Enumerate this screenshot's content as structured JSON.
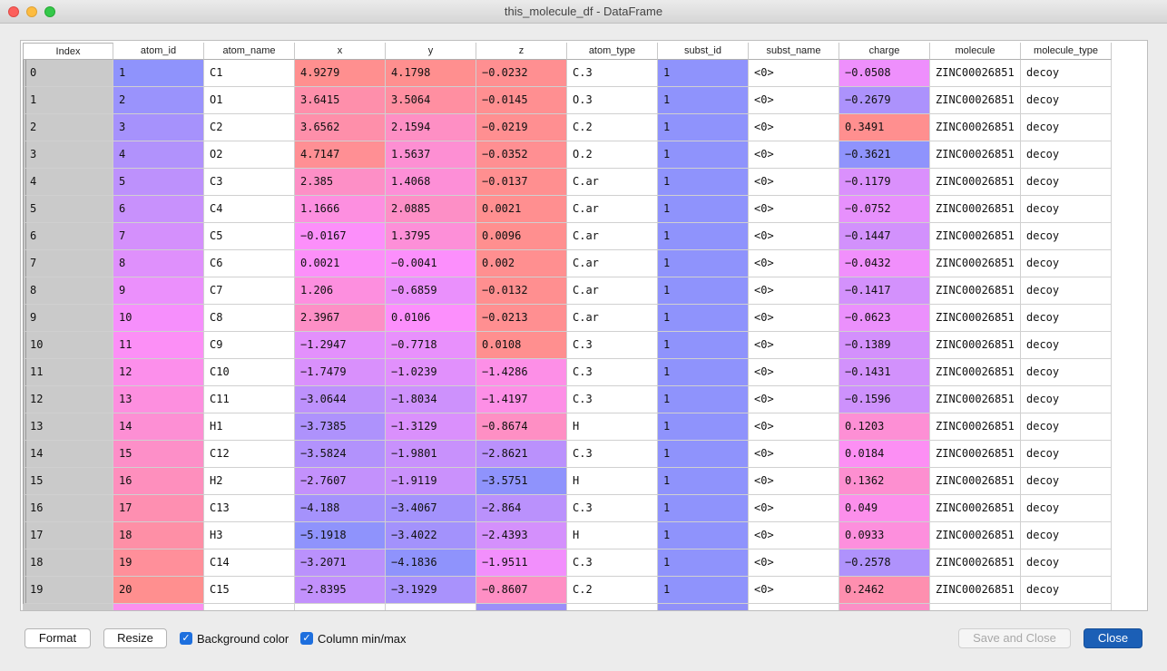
{
  "window": {
    "title": "this_molecule_df - DataFrame"
  },
  "table": {
    "columns": [
      "Index",
      "atom_id",
      "atom_name",
      "x",
      "y",
      "z",
      "atom_type",
      "subst_id",
      "subst_name",
      "charge",
      "molecule",
      "molecule_type"
    ],
    "rows": [
      [
        "0",
        "1",
        "C1",
        "4.9279",
        "4.1798",
        "-0.0232",
        "C.3",
        "1",
        "<0>",
        "-0.0508",
        "ZINC00026851",
        "decoy"
      ],
      [
        "1",
        "2",
        "O1",
        "3.6415",
        "3.5064",
        "-0.0145",
        "O.3",
        "1",
        "<0>",
        "-0.2679",
        "ZINC00026851",
        "decoy"
      ],
      [
        "2",
        "3",
        "C2",
        "3.6562",
        "2.1594",
        "-0.0219",
        "C.2",
        "1",
        "<0>",
        "0.3491",
        "ZINC00026851",
        "decoy"
      ],
      [
        "3",
        "4",
        "O2",
        "4.7147",
        "1.5637",
        "-0.0352",
        "O.2",
        "1",
        "<0>",
        "-0.3621",
        "ZINC00026851",
        "decoy"
      ],
      [
        "4",
        "5",
        "C3",
        "2.385",
        "1.4068",
        "-0.0137",
        "C.ar",
        "1",
        "<0>",
        "-0.1179",
        "ZINC00026851",
        "decoy"
      ],
      [
        "5",
        "6",
        "C4",
        "1.1666",
        "2.0885",
        "0.0021",
        "C.ar",
        "1",
        "<0>",
        "-0.0752",
        "ZINC00026851",
        "decoy"
      ],
      [
        "6",
        "7",
        "C5",
        "-0.0167",
        "1.3795",
        "0.0096",
        "C.ar",
        "1",
        "<0>",
        "-0.1447",
        "ZINC00026851",
        "decoy"
      ],
      [
        "7",
        "8",
        "C6",
        "0.0021",
        "-0.0041",
        "0.002",
        "C.ar",
        "1",
        "<0>",
        "-0.0432",
        "ZINC00026851",
        "decoy"
      ],
      [
        "8",
        "9",
        "C7",
        "1.206",
        "-0.6859",
        "-0.0132",
        "C.ar",
        "1",
        "<0>",
        "-0.1417",
        "ZINC00026851",
        "decoy"
      ],
      [
        "9",
        "10",
        "C8",
        "2.3967",
        "0.0106",
        "-0.0213",
        "C.ar",
        "1",
        "<0>",
        "-0.0623",
        "ZINC00026851",
        "decoy"
      ],
      [
        "10",
        "11",
        "C9",
        "-1.2947",
        "-0.7718",
        "0.0108",
        "C.3",
        "1",
        "<0>",
        "-0.1389",
        "ZINC00026851",
        "decoy"
      ],
      [
        "11",
        "12",
        "C10",
        "-1.7479",
        "-1.0239",
        "-1.4286",
        "C.3",
        "1",
        "<0>",
        "-0.1431",
        "ZINC00026851",
        "decoy"
      ],
      [
        "12",
        "13",
        "C11",
        "-3.0644",
        "-1.8034",
        "-1.4197",
        "C.3",
        "1",
        "<0>",
        "-0.1596",
        "ZINC00026851",
        "decoy"
      ],
      [
        "13",
        "14",
        "H1",
        "-3.7385",
        "-1.3129",
        "-0.8674",
        "H",
        "1",
        "<0>",
        "0.1203",
        "ZINC00026851",
        "decoy"
      ],
      [
        "14",
        "15",
        "C12",
        "-3.5824",
        "-1.9801",
        "-2.8621",
        "C.3",
        "1",
        "<0>",
        "0.0184",
        "ZINC00026851",
        "decoy"
      ],
      [
        "15",
        "16",
        "H2",
        "-2.7607",
        "-1.9119",
        "-3.5751",
        "H",
        "1",
        "<0>",
        "0.1362",
        "ZINC00026851",
        "decoy"
      ],
      [
        "16",
        "17",
        "C13",
        "-4.188",
        "-3.4067",
        "-2.864",
        "C.3",
        "1",
        "<0>",
        "0.049",
        "ZINC00026851",
        "decoy"
      ],
      [
        "17",
        "18",
        "H3",
        "-5.1918",
        "-3.4022",
        "-2.4393",
        "H",
        "1",
        "<0>",
        "0.0933",
        "ZINC00026851",
        "decoy"
      ],
      [
        "18",
        "19",
        "C14",
        "-3.2071",
        "-4.1836",
        "-1.9511",
        "C.3",
        "1",
        "<0>",
        "-0.2578",
        "ZINC00026851",
        "decoy"
      ],
      [
        "19",
        "20",
        "C15",
        "-2.8395",
        "-3.1929",
        "-0.8607",
        "C.2",
        "1",
        "<0>",
        "0.2462",
        "ZINC00026851",
        "decoy"
      ]
    ],
    "partial_row_colors": [
      "#cacaca",
      "#fb8fef",
      "#ffffff",
      "#ffffff",
      "#ffffff",
      "#9b8ff8",
      "#ffffff",
      "#9090f8",
      "#ffffff",
      "#fb8fc6",
      "#ffffff",
      "#ffffff"
    ]
  },
  "footer": {
    "format_label": "Format",
    "resize_label": "Resize",
    "bg_color_label": "Background color",
    "bg_color_checked": true,
    "minmax_label": "Column min/max",
    "minmax_checked": true,
    "save_close_label": "Save and Close",
    "close_label": "Close"
  },
  "colors": {
    "accent": "#1b5fb6",
    "low": "#8f93fc",
    "high": "#ff8f8f"
  }
}
